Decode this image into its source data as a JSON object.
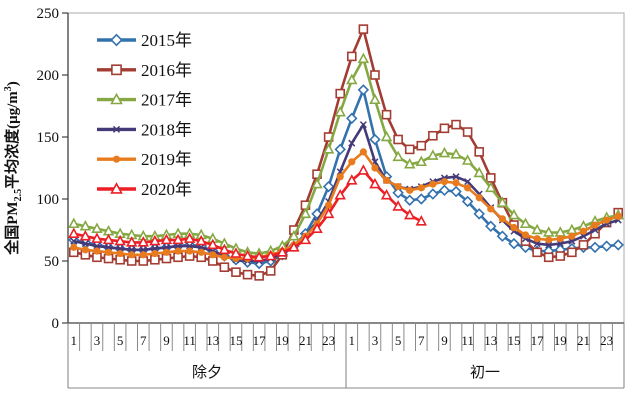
{
  "chart_data": {
    "type": "line",
    "title": "",
    "ylabel_parts": [
      {
        "t": "全国PM",
        "style": "normal"
      },
      {
        "t": "2.5",
        "style": "sub"
      },
      {
        "t": "平均浓度(μg/m",
        "style": "normal"
      },
      {
        "t": "3",
        "style": "sup"
      },
      {
        "t": ")",
        "style": "normal"
      }
    ],
    "ylim": [
      0,
      250
    ],
    "yticks": [
      0,
      50,
      100,
      150,
      200,
      250
    ],
    "x_hours_per_day": 24,
    "x_tick_labels": [
      "1",
      "3",
      "5",
      "7",
      "9",
      "11",
      "13",
      "15",
      "17",
      "19",
      "21",
      "23"
    ],
    "day_labels": [
      "除夕",
      "初一"
    ],
    "legend_position": "top-left-inside",
    "grid": false,
    "series": [
      {
        "name": "2015年",
        "color": "#3472AE",
        "marker": "diamond-open",
        "values": [
          67,
          65,
          63,
          61,
          60,
          59,
          59,
          60,
          61,
          62,
          63,
          62,
          58,
          54,
          51,
          49,
          48,
          50,
          55,
          62,
          72,
          88,
          110,
          140,
          165,
          188,
          148,
          118,
          105,
          99,
          100,
          104,
          107,
          106,
          98,
          88,
          78,
          70,
          64,
          61,
          58,
          58,
          59,
          60,
          61,
          61,
          62,
          63
        ]
      },
      {
        "name": "2016年",
        "color": "#A33C32",
        "marker": "square-open",
        "values": [
          57,
          55,
          53,
          52,
          51,
          50,
          50,
          51,
          52,
          53,
          54,
          53,
          50,
          45,
          41,
          39,
          38,
          42,
          55,
          75,
          95,
          120,
          150,
          185,
          215,
          237,
          200,
          168,
          148,
          140,
          143,
          151,
          157,
          160,
          154,
          138,
          117,
          97,
          79,
          66,
          57,
          53,
          54,
          57,
          63,
          72,
          81,
          89
        ]
      },
      {
        "name": "2017年",
        "color": "#85A843",
        "marker": "triangle-open",
        "values": [
          80,
          78,
          76,
          74,
          72,
          71,
          70,
          70,
          71,
          72,
          72,
          71,
          68,
          64,
          60,
          57,
          56,
          58,
          62,
          70,
          88,
          112,
          140,
          170,
          196,
          213,
          180,
          150,
          134,
          128,
          130,
          135,
          137,
          136,
          131,
          121,
          109,
          97,
          87,
          80,
          75,
          73,
          73,
          75,
          78,
          82,
          85,
          87
        ]
      },
      {
        "name": "2018年",
        "color": "#453A78",
        "marker": "x",
        "values": [
          66,
          64,
          62,
          61,
          60,
          59,
          59,
          60,
          61,
          62,
          62,
          61,
          58,
          54,
          51,
          50,
          50,
          52,
          56,
          62,
          70,
          82,
          98,
          122,
          145,
          160,
          130,
          115,
          110,
          108,
          110,
          114,
          117,
          118,
          114,
          104,
          93,
          83,
          74,
          68,
          64,
          63,
          64,
          66,
          70,
          75,
          80,
          83
        ]
      },
      {
        "name": "2019年",
        "color": "#E87B1E",
        "marker": "circle-filled",
        "values": [
          61,
          59,
          58,
          57,
          56,
          55,
          55,
          56,
          57,
          58,
          58,
          57,
          55,
          53,
          52,
          52,
          53,
          55,
          58,
          63,
          70,
          80,
          95,
          118,
          130,
          138,
          125,
          115,
          110,
          107,
          109,
          112,
          114,
          113,
          109,
          101,
          92,
          84,
          77,
          71,
          68,
          67,
          68,
          70,
          74,
          79,
          83,
          86
        ]
      },
      {
        "name": "2020年",
        "color": "#EC1F26",
        "marker": "triangle-open",
        "values": [
          72,
          70,
          68,
          67,
          66,
          65,
          65,
          66,
          67,
          67,
          68,
          66,
          63,
          59,
          56,
          54,
          53,
          54,
          57,
          61,
          67,
          76,
          88,
          103,
          115,
          123,
          112,
          103,
          94,
          87,
          82
        ]
      }
    ]
  }
}
